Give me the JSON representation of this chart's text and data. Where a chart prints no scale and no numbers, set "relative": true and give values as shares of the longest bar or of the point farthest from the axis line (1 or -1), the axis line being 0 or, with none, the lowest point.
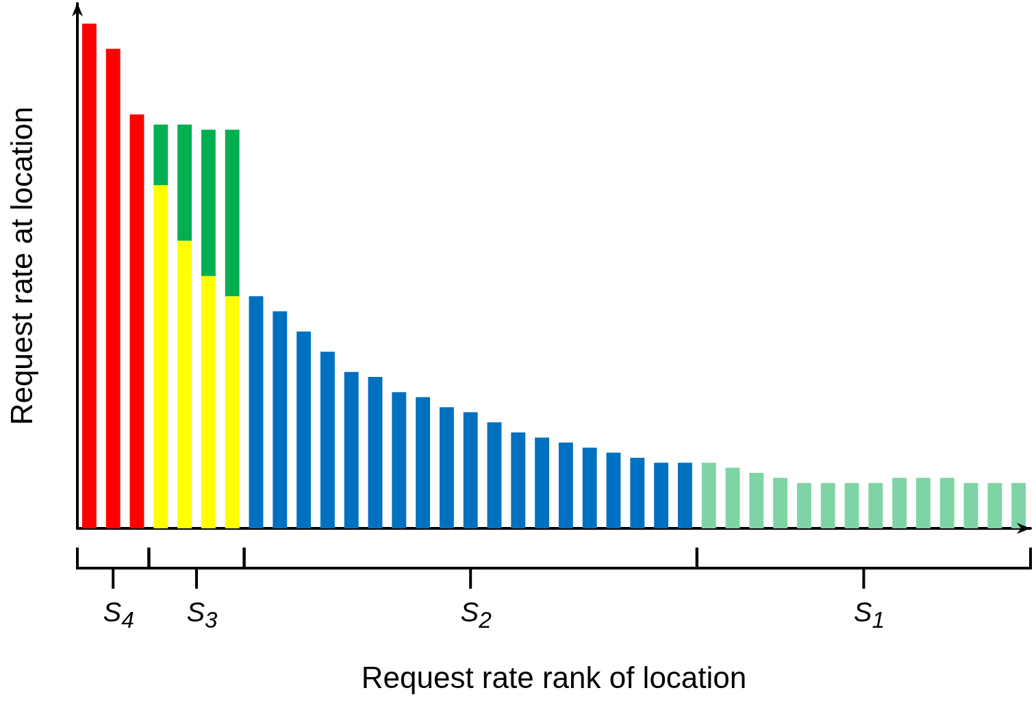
{
  "chart_data": {
    "type": "bar",
    "stacked": true,
    "relative": true,
    "xlabel": "Request rate rank of location",
    "ylabel": "Request rate at location",
    "annotations": [
      "S$_{4}$",
      "S$_{3}$",
      "S$_{2}$",
      "S$_{1}$"
    ],
    "categories": [
      null,
      null,
      null,
      null,
      null,
      null,
      null,
      null,
      null,
      null,
      null,
      null,
      null,
      null,
      null,
      null,
      null,
      null,
      null,
      null,
      null,
      null,
      null,
      null,
      null,
      null,
      null,
      null,
      null,
      null,
      null,
      null,
      null,
      null,
      null,
      null,
      null,
      null,
      null,
      null
    ],
    "series": [
      {
        "color": "#ff0000",
        "values": [
          1.0,
          0.95,
          0.82,
          null,
          null,
          null,
          null,
          null,
          null,
          null,
          null,
          null,
          null,
          null,
          null,
          null,
          null,
          null,
          null,
          null,
          null,
          null,
          null,
          null,
          null,
          null,
          null,
          null,
          null,
          null,
          null,
          null,
          null,
          null,
          null,
          null,
          null,
          null,
          null,
          null
        ]
      },
      {
        "color": "#ffff00",
        "values": [
          null,
          null,
          null,
          0.68,
          0.57,
          0.5,
          0.46,
          null,
          null,
          null,
          null,
          null,
          null,
          null,
          null,
          null,
          null,
          null,
          null,
          null,
          null,
          null,
          null,
          null,
          null,
          null,
          null,
          null,
          null,
          null,
          null,
          null,
          null,
          null,
          null,
          null,
          null,
          null,
          null,
          null
        ]
      },
      {
        "color": "#00b050",
        "values": [
          null,
          null,
          null,
          0.12,
          0.23,
          0.29,
          0.33,
          null,
          null,
          null,
          null,
          null,
          null,
          null,
          null,
          null,
          null,
          null,
          null,
          null,
          null,
          null,
          null,
          null,
          null,
          null,
          null,
          null,
          null,
          null,
          null,
          null,
          null,
          null,
          null,
          null,
          null,
          null,
          null,
          null
        ]
      },
      {
        "color": "#0070c0",
        "values": [
          null,
          null,
          null,
          null,
          null,
          null,
          null,
          0.46,
          0.43,
          0.39,
          0.35,
          0.31,
          0.3,
          0.27,
          0.26,
          0.24,
          0.23,
          0.21,
          0.19,
          0.18,
          0.17,
          0.16,
          0.15,
          0.14,
          0.13,
          0.13,
          null,
          null,
          null,
          null,
          null,
          null,
          null,
          null,
          null,
          null,
          null,
          null,
          null,
          null
        ]
      },
      {
        "color": "#7fd4a6",
        "values": [
          null,
          null,
          null,
          null,
          null,
          null,
          null,
          null,
          null,
          null,
          null,
          null,
          null,
          null,
          null,
          null,
          null,
          null,
          null,
          null,
          null,
          null,
          null,
          null,
          null,
          null,
          0.13,
          0.12,
          0.11,
          0.1,
          0.09,
          0.09,
          0.09,
          0.09,
          0.1,
          0.1,
          0.1,
          0.09,
          0.09,
          0.09
        ]
      }
    ]
  }
}
